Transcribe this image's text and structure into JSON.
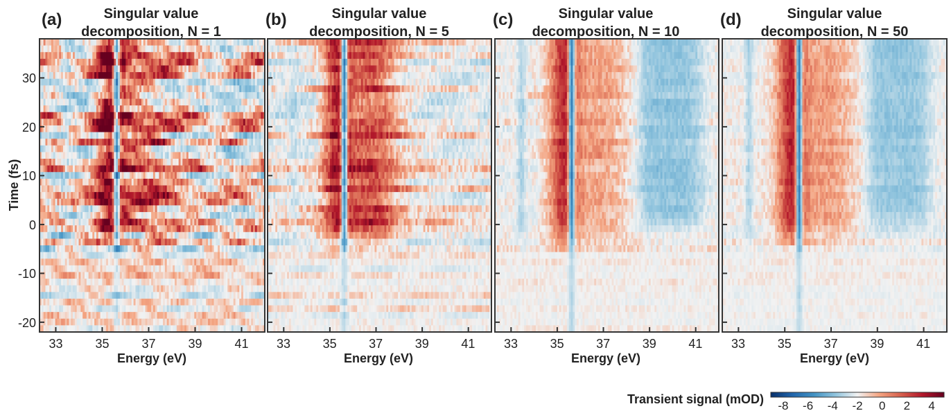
{
  "chart_data": [
    {
      "type": "heatmap",
      "panel_label": "(a)",
      "title_line1": "Singular value",
      "title_line2": "decomposition, N = 1",
      "xlabel": "Energy (eV)",
      "ylabel": "Time (fs)",
      "xlim": [
        32.3,
        42.0
      ],
      "ylim": [
        -22,
        38
      ],
      "xticks": [
        "33",
        "35",
        "37",
        "39",
        "41"
      ],
      "yticks": [
        "-20",
        "-10",
        "0",
        "10",
        "20",
        "30"
      ],
      "n_components": 1
    },
    {
      "type": "heatmap",
      "panel_label": "(b)",
      "title_line1": "Singular value",
      "title_line2": "decomposition, N = 5",
      "xlabel": "Energy (eV)",
      "xlim": [
        32.3,
        42.0
      ],
      "ylim": [
        -22,
        38
      ],
      "xticks": [
        "33",
        "35",
        "37",
        "39",
        "41"
      ],
      "n_components": 5
    },
    {
      "type": "heatmap",
      "panel_label": "(c)",
      "title_line1": "Singular value",
      "title_line2": "decomposition, N = 10",
      "xlabel": "Energy (eV)",
      "xlim": [
        32.3,
        42.0
      ],
      "ylim": [
        -22,
        38
      ],
      "xticks": [
        "33",
        "35",
        "37",
        "39",
        "41"
      ],
      "n_components": 10
    },
    {
      "type": "heatmap",
      "panel_label": "(d)",
      "title_line1": "Singular value",
      "title_line2": "decomposition, N = 50",
      "xlabel": "Energy (eV)",
      "xlim": [
        32.3,
        42.0
      ],
      "ylim": [
        -22,
        38
      ],
      "xticks": [
        "33",
        "35",
        "37",
        "39",
        "41"
      ],
      "n_components": 50
    }
  ],
  "colorbar": {
    "label": "Transient signal (mOD)",
    "range": [
      -9,
      5
    ],
    "ticks": [
      "-8",
      "-6",
      "-4",
      "-2",
      "0",
      "2",
      "4"
    ],
    "colors": [
      "#08306b",
      "#2166ac",
      "#4393c3",
      "#92c5de",
      "#f2f2f2",
      "#f4a582",
      "#d6604d",
      "#b2182b",
      "#67001f"
    ]
  }
}
